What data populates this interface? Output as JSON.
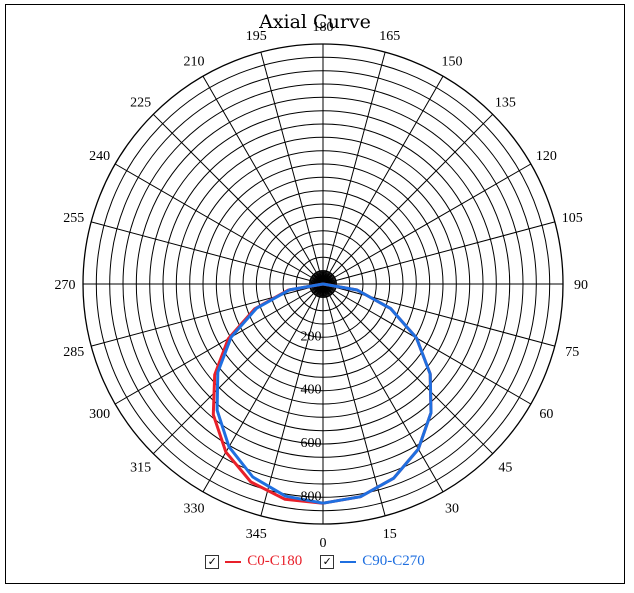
{
  "title": "Axial Curve",
  "chart_data": {
    "type": "polar-line",
    "angle_labels": [
      "0",
      "15",
      "30",
      "45",
      "60",
      "75",
      "90",
      "105",
      "120",
      "135",
      "150",
      "165",
      "180",
      "195",
      "210",
      "225",
      "240",
      "255",
      "270",
      "285",
      "300",
      "315",
      "330",
      "345"
    ],
    "radial_labels": [
      "200",
      "400",
      "600",
      "800"
    ],
    "radial_max": 900,
    "series": [
      {
        "name": "C0-C180",
        "color": "#e8202a",
        "angles": [
          0,
          10,
          20,
          30,
          40,
          50,
          60,
          70,
          80,
          90,
          270,
          280,
          290,
          300,
          310,
          320,
          330,
          340,
          350,
          360
        ],
        "values": [
          822,
          810,
          775,
          715,
          630,
          525,
          405,
          270,
          130,
          0,
          0,
          132,
          272,
          410,
          530,
          640,
          728,
          790,
          820,
          822
        ]
      },
      {
        "name": "C90-C270",
        "color": "#1f6fe0",
        "angles": [
          0,
          10,
          20,
          30,
          40,
          50,
          60,
          70,
          80,
          90,
          270,
          280,
          290,
          300,
          310,
          320,
          330,
          340,
          350,
          360
        ],
        "values": [
          822,
          810,
          775,
          715,
          630,
          525,
          405,
          270,
          130,
          0,
          0,
          128,
          265,
          398,
          515,
          618,
          705,
          770,
          808,
          822
        ]
      }
    ]
  },
  "legend": [
    {
      "label": "C0-C180",
      "checked": "✓",
      "color": "#e8202a"
    },
    {
      "label": "C90-C270",
      "checked": "✓",
      "color": "#1f6fe0"
    }
  ]
}
